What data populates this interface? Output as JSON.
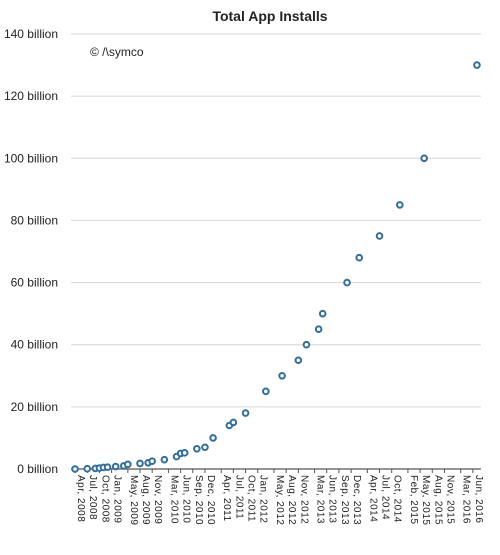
{
  "copyright": "© /\\symco",
  "chart_data": {
    "type": "scatter",
    "title": "Total App Installs",
    "xlabel": "",
    "ylabel": "",
    "ylim": [
      0,
      140
    ],
    "grid": true,
    "legend": "none",
    "y_tick_labels": [
      "0 billion",
      "20 billion",
      "40 billion",
      "60 billion",
      "80 billion",
      "100 billion",
      "120 billion",
      "140 billion"
    ],
    "y_tick_values": [
      0,
      20,
      40,
      60,
      80,
      100,
      120,
      140
    ],
    "x_tick_labels": [
      "Apr, 2008",
      "Jul, 2008",
      "Oct, 2008",
      "Jan, 2009",
      "May, 2009",
      "Aug, 2009",
      "Nov, 2009",
      "Mar, 2010",
      "Jun, 2010",
      "Sep, 2010",
      "Dec, 2010",
      "Apr, 2011",
      "Jul, 2011",
      "Oct, 2011",
      "Jan, 2012",
      "May, 2012",
      "Aug, 2012",
      "Nov, 2012",
      "Mar, 2013",
      "Jun, 2013",
      "Sep, 2013",
      "Dec, 2013",
      "Apr, 2014",
      "Jul, 2014",
      "Oct, 2014",
      "Feb, 2015",
      "May, 2015",
      "Aug, 2015",
      "Nov, 2015",
      "Mar, 2016",
      "Jun, 2016"
    ],
    "x_tick_months": [
      0,
      3,
      6,
      9,
      13,
      16,
      19,
      23,
      26,
      29,
      32,
      36,
      39,
      42,
      45,
      49,
      52,
      55,
      59,
      62,
      65,
      68,
      72,
      75,
      78,
      82,
      85,
      88,
      91,
      95,
      98
    ],
    "x_unit": "months since Apr 2008",
    "points": [
      {
        "x": 0,
        "y": 0
      },
      {
        "x": 3,
        "y": 0.1
      },
      {
        "x": 5,
        "y": 0.2
      },
      {
        "x": 6,
        "y": 0.3
      },
      {
        "x": 7,
        "y": 0.5
      },
      {
        "x": 8,
        "y": 0.6
      },
      {
        "x": 10,
        "y": 0.8
      },
      {
        "x": 12,
        "y": 1.0
      },
      {
        "x": 13,
        "y": 1.5
      },
      {
        "x": 16,
        "y": 1.8
      },
      {
        "x": 18,
        "y": 2.0
      },
      {
        "x": 19,
        "y": 2.5
      },
      {
        "x": 22,
        "y": 3.0
      },
      {
        "x": 25,
        "y": 4.0
      },
      {
        "x": 26,
        "y": 5.0
      },
      {
        "x": 27,
        "y": 5.2
      },
      {
        "x": 30,
        "y": 6.5
      },
      {
        "x": 32,
        "y": 7.0
      },
      {
        "x": 34,
        "y": 10
      },
      {
        "x": 38,
        "y": 14
      },
      {
        "x": 39,
        "y": 15
      },
      {
        "x": 42,
        "y": 18
      },
      {
        "x": 47,
        "y": 25
      },
      {
        "x": 51,
        "y": 30
      },
      {
        "x": 55,
        "y": 35
      },
      {
        "x": 57,
        "y": 40
      },
      {
        "x": 60,
        "y": 45
      },
      {
        "x": 61,
        "y": 50
      },
      {
        "x": 67,
        "y": 60
      },
      {
        "x": 70,
        "y": 68
      },
      {
        "x": 75,
        "y": 75
      },
      {
        "x": 80,
        "y": 85
      },
      {
        "x": 86,
        "y": 100
      },
      {
        "x": 99,
        "y": 130
      }
    ]
  }
}
